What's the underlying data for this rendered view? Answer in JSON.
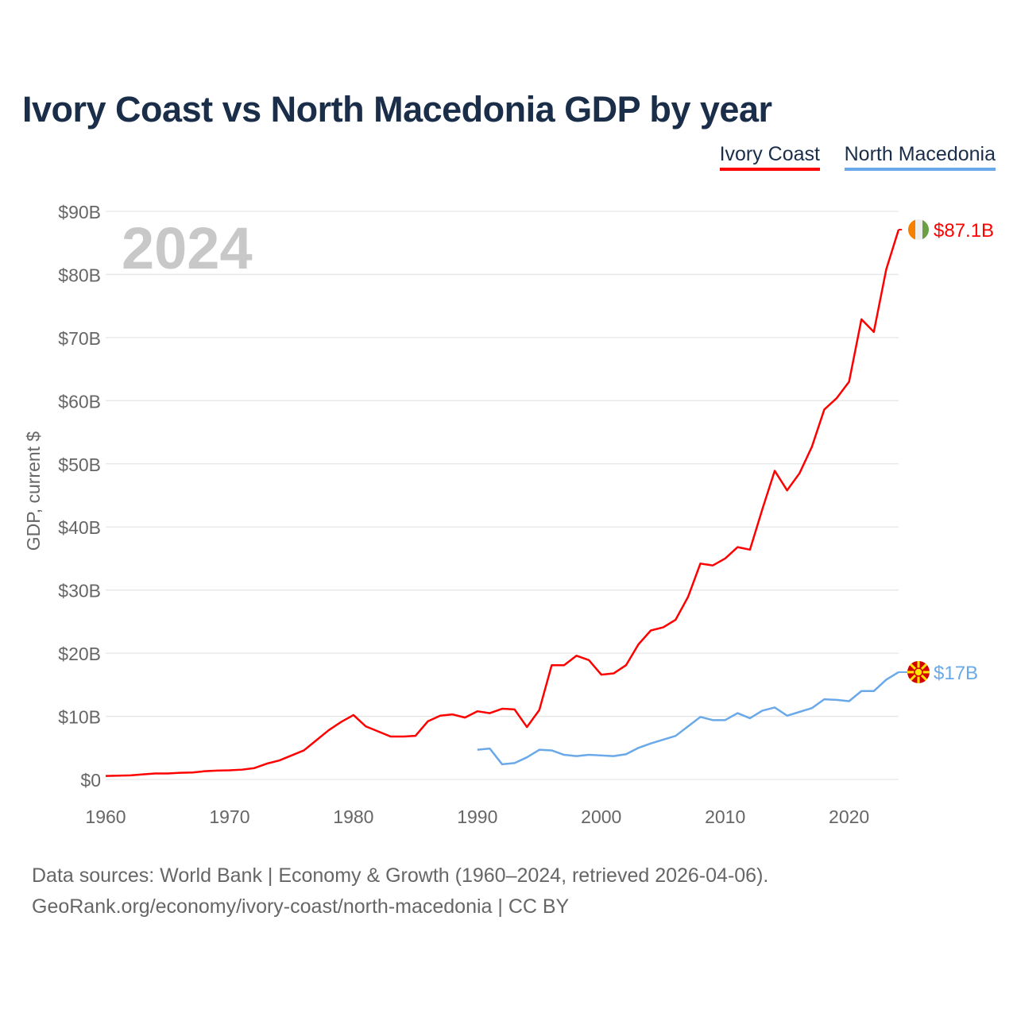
{
  "chart_data": {
    "type": "line",
    "title": "Ivory Coast vs North Macedonia GDP by year",
    "ylabel": "GDP, current $",
    "xlabel": "",
    "year_watermark": "2024",
    "ylim": [
      0,
      90
    ],
    "xlim": [
      1960,
      2024
    ],
    "yticks": [
      "$0",
      "$10B",
      "$20B",
      "$30B",
      "$40B",
      "$50B",
      "$60B",
      "$70B",
      "$80B",
      "$90B"
    ],
    "xticks": [
      "1960",
      "1970",
      "1980",
      "1990",
      "2000",
      "2010",
      "2020"
    ],
    "legend": [
      "Ivory Coast",
      "North Macedonia"
    ],
    "legend_position": "top-right",
    "series": [
      {
        "name": "Ivory Coast",
        "color": "#ff0000",
        "start": 1960,
        "end_label": "$87.1B",
        "values": [
          0.55,
          0.6,
          0.65,
          0.8,
          0.95,
          0.95,
          1.05,
          1.1,
          1.3,
          1.4,
          1.45,
          1.55,
          1.8,
          2.5,
          3.0,
          3.8,
          4.6,
          6.2,
          7.8,
          9.1,
          10.2,
          8.4,
          7.6,
          6.8,
          6.8,
          6.9,
          9.2,
          10.1,
          10.3,
          9.8,
          10.8,
          10.5,
          11.2,
          11.1,
          8.3,
          11.0,
          18.1,
          18.1,
          19.6,
          18.9,
          16.6,
          16.8,
          18.1,
          21.4,
          23.6,
          24.1,
          25.3,
          28.9,
          34.2,
          33.9,
          35.0,
          36.8,
          36.4,
          42.8,
          48.9,
          45.8,
          48.5,
          52.7,
          58.6,
          60.4,
          63.0,
          72.9,
          70.9,
          80.8,
          87.1
        ]
      },
      {
        "name": "North Macedonia",
        "color": "#6aa9e9",
        "start": 1990,
        "end_label": "$17B",
        "values": [
          4.7,
          4.9,
          2.4,
          2.6,
          3.5,
          4.7,
          4.6,
          3.9,
          3.7,
          3.9,
          3.8,
          3.7,
          4.0,
          5.0,
          5.7,
          6.3,
          6.9,
          8.4,
          9.9,
          9.4,
          9.4,
          10.5,
          9.7,
          10.9,
          11.4,
          10.1,
          10.7,
          11.3,
          12.7,
          12.6,
          12.4,
          14.0,
          14.0,
          15.8,
          17.0
        ]
      }
    ]
  },
  "footer": {
    "line1": "Data sources: World Bank | Economy & Growth (1960–2024, retrieved 2026-04-06).",
    "line2": "GeoRank.org/economy/ivory-coast/north-macedonia | CC BY"
  }
}
